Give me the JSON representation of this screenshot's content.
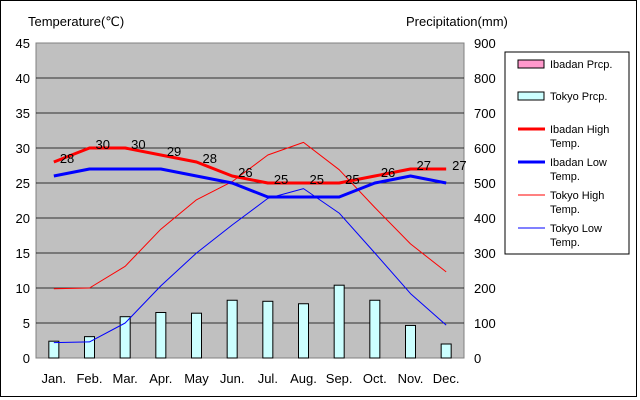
{
  "chart_data": {
    "type": "bar+line",
    "title": "",
    "ylabel_left": "Temperature(℃)",
    "ylabel_right": "Precipitation(mm)",
    "ylim_left": [
      0,
      45
    ],
    "ylim_right": [
      0,
      900
    ],
    "yticks_left": [
      "0",
      "5",
      "10",
      "15",
      "20",
      "25",
      "30",
      "35",
      "40",
      "45"
    ],
    "yticks_right": [
      "0",
      "100",
      "200",
      "300",
      "400",
      "500",
      "600",
      "700",
      "800",
      "900"
    ],
    "categories": [
      "Jan.",
      "Feb.",
      "Mar.",
      "Apr.",
      "May",
      "Jun.",
      "Jul.",
      "Aug.",
      "Sep.",
      "Oct.",
      "Nov.",
      "Dec."
    ],
    "grid": true,
    "legend_position": "right",
    "bar_series": [
      {
        "name": "Ibadan Prcp.",
        "axis": "right",
        "color": "#ff99cc",
        "values": [
          0,
          0,
          0,
          0,
          0,
          0,
          0,
          0,
          0,
          0,
          0,
          0
        ]
      },
      {
        "name": "Tokyo Prcp.",
        "axis": "right",
        "color": "#ccffff",
        "values": [
          48,
          61,
          118,
          130,
          128,
          165,
          162,
          155,
          208,
          165,
          93,
          40
        ]
      }
    ],
    "line_series": [
      {
        "name": "Ibadan High Temp.",
        "axis": "left",
        "color": "#ff0000",
        "width": 3,
        "values": [
          28,
          30,
          30,
          29,
          28,
          26,
          25,
          25,
          25,
          26,
          27,
          27
        ],
        "labels": [
          "28",
          "30",
          "30",
          "29",
          "28",
          "26",
          "25",
          "25",
          "25",
          "26",
          "27",
          "27"
        ]
      },
      {
        "name": "Ibadan Low Temp.",
        "axis": "left",
        "color": "#0000ff",
        "width": 3,
        "values": [
          26,
          27,
          27,
          27,
          26,
          25,
          23,
          23,
          23,
          25,
          26,
          25
        ]
      },
      {
        "name": "Tokyo High Temp.",
        "axis": "left",
        "color": "#ff0000",
        "width": 1,
        "values": [
          9.9,
          10,
          13.1,
          18.4,
          22.6,
          25.2,
          29,
          30.8,
          26.9,
          21.5,
          16.3,
          12.3
        ]
      },
      {
        "name": "Tokyo Low Temp.",
        "axis": "left",
        "color": "#0000ff",
        "width": 1,
        "values": [
          2.2,
          2.3,
          5,
          10.3,
          15,
          19,
          22.8,
          24.2,
          20.7,
          15,
          9.2,
          4.7
        ]
      }
    ],
    "legend_lines": [
      [
        "Ibadan Prcp."
      ],
      [
        "Tokyo Prcp."
      ],
      [
        "Ibadan High",
        "Temp."
      ],
      [
        "Ibadan Low",
        "Temp."
      ],
      [
        "Tokyo High",
        "Temp."
      ],
      [
        "Tokyo Low",
        "Temp."
      ]
    ]
  }
}
